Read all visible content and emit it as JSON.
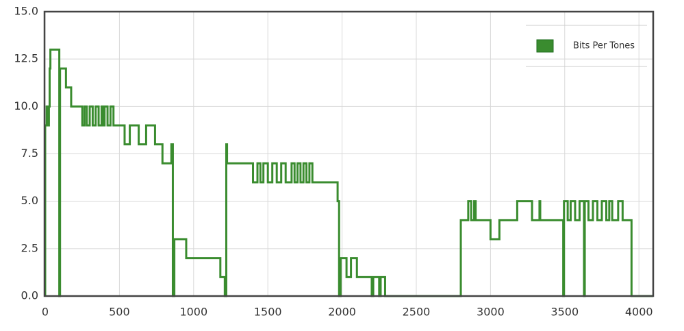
{
  "chart_data": {
    "type": "line",
    "x": [
      0,
      0,
      10,
      10,
      15,
      15,
      25,
      25,
      30,
      30,
      35,
      35,
      95,
      95,
      100,
      100,
      140,
      140,
      175,
      175,
      250,
      250,
      265,
      265,
      280,
      280,
      300,
      300,
      320,
      320,
      340,
      340,
      360,
      360,
      380,
      380,
      390,
      390,
      400,
      400,
      420,
      420,
      440,
      440,
      460,
      460,
      535,
      535,
      570,
      570,
      630,
      630,
      680,
      680,
      740,
      740,
      790,
      790,
      850,
      850,
      860,
      860,
      870,
      870,
      950,
      950,
      1180,
      1180,
      1210,
      1210,
      1220,
      1220,
      1225,
      1225,
      1400,
      1400,
      1430,
      1430,
      1450,
      1450,
      1470,
      1470,
      1500,
      1500,
      1530,
      1530,
      1560,
      1560,
      1590,
      1590,
      1620,
      1620,
      1660,
      1660,
      1680,
      1680,
      1700,
      1700,
      1720,
      1720,
      1740,
      1740,
      1760,
      1760,
      1780,
      1780,
      1800,
      1800,
      1970,
      1970,
      1980,
      1980,
      1990,
      1990,
      2030,
      2030,
      2060,
      2060,
      2100,
      2100,
      2200,
      2200,
      2210,
      2210,
      2250,
      2250,
      2260,
      2260,
      2290,
      2290,
      2800,
      2800,
      2850,
      2850,
      2870,
      2870,
      2890,
      2890,
      2900,
      2900,
      3000,
      3000,
      3060,
      3060,
      3180,
      3180,
      3280,
      3280,
      3330,
      3330,
      3335,
      3335,
      3490,
      3490,
      3495,
      3495,
      3520,
      3520,
      3540,
      3540,
      3570,
      3570,
      3600,
      3600,
      3630,
      3630,
      3635,
      3635,
      3660,
      3660,
      3690,
      3690,
      3720,
      3720,
      3750,
      3750,
      3780,
      3780,
      3800,
      3800,
      3820,
      3820,
      3860,
      3860,
      3890,
      3890,
      3950,
      3950,
      4096
    ],
    "series": [
      {
        "name": "Bits Per Tones",
        "color": "#3a8c2f",
        "values": [
          0,
          9,
          9,
          10,
          10,
          9,
          9,
          10,
          10,
          12,
          12,
          13,
          13,
          0,
          0,
          12,
          12,
          11,
          11,
          10,
          10,
          9,
          9,
          10,
          10,
          9,
          9,
          10,
          10,
          9,
          9,
          10,
          10,
          9,
          9,
          10,
          10,
          9,
          9,
          10,
          10,
          9,
          9,
          10,
          10,
          9,
          9,
          8,
          8,
          9,
          9,
          8,
          8,
          9,
          9,
          8,
          8,
          7,
          7,
          8,
          8,
          0,
          0,
          3,
          3,
          2,
          2,
          1,
          1,
          0,
          0,
          8,
          8,
          7,
          7,
          6,
          6,
          7,
          7,
          6,
          6,
          7,
          7,
          6,
          6,
          7,
          7,
          6,
          6,
          7,
          7,
          6,
          6,
          7,
          7,
          6,
          6,
          7,
          7,
          6,
          6,
          7,
          7,
          6,
          6,
          7,
          7,
          6,
          6,
          5,
          5,
          0,
          0,
          2,
          2,
          1,
          1,
          2,
          2,
          1,
          1,
          0,
          0,
          1,
          1,
          0,
          0,
          1,
          1,
          0,
          0,
          4,
          4,
          5,
          5,
          4,
          4,
          5,
          5,
          4,
          4,
          3,
          3,
          4,
          4,
          5,
          5,
          4,
          4,
          5,
          5,
          4,
          4,
          0,
          0,
          5,
          5,
          4,
          4,
          5,
          5,
          4,
          4,
          5,
          5,
          0,
          0,
          5,
          5,
          4,
          4,
          5,
          5,
          4,
          4,
          5,
          5,
          4,
          4,
          5,
          5,
          4,
          4,
          5,
          5,
          4,
          4,
          0,
          0
        ]
      }
    ],
    "xlim": [
      0,
      4096
    ],
    "xticks": [
      0,
      500,
      1000,
      1500,
      2000,
      2500,
      3000,
      3500,
      4000
    ],
    "ylim": [
      0,
      15
    ],
    "yticks": [
      {
        "value": 0,
        "label": "0.0"
      },
      2.5,
      {
        "value": 5,
        "label": "5.0"
      },
      7.5,
      {
        "value": 10,
        "label": "10.0"
      },
      12.5,
      {
        "value": 15,
        "label": "15.0"
      }
    ],
    "grid": true,
    "legend": "upper right"
  }
}
